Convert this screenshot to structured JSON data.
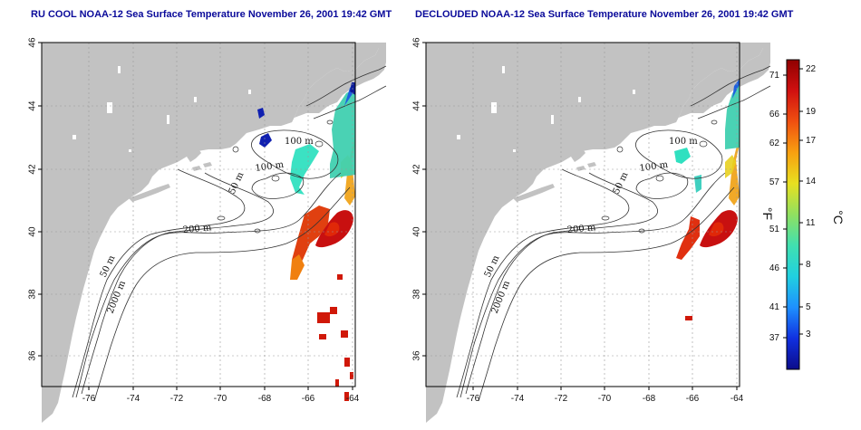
{
  "left_map": {
    "title": "RU COOL NOAA-12 Sea Surface Temperature November 26, 2001 19:42 GMT"
  },
  "right_map": {
    "title": "DECLOUDED NOAA-12 Sea Surface Temperature November 26, 2001 19:42 GMT"
  },
  "axes": {
    "lon_ticks": [
      "-76",
      "-74",
      "-72",
      "-70",
      "-68",
      "-66",
      "-64"
    ],
    "lat_ticks": [
      "36",
      "38",
      "40",
      "42",
      "44",
      "46"
    ]
  },
  "contour_labels": [
    "100 m",
    "100 m",
    "50 m",
    "200 m",
    "50 m",
    "2000 m"
  ],
  "colorbar": {
    "fahrenheit_label": "°F",
    "celsius_label": "°C",
    "fahrenheit_ticks": [
      "71",
      "66",
      "62",
      "57",
      "51",
      "46",
      "41",
      "37"
    ],
    "celsius_ticks": [
      "22",
      "19",
      "17",
      "14",
      "11",
      "8",
      "5",
      "3"
    ],
    "colors": [
      "#0c0c8a",
      "#1030e0",
      "#1e90ff",
      "#20d0e0",
      "#40e0b0",
      "#90e060",
      "#e8e020",
      "#f8a010",
      "#f05010",
      "#d01010",
      "#900000"
    ]
  },
  "colors": {
    "land": "#c2c2c2",
    "title": "#0a0a9a",
    "grid": "#9a9a9a"
  }
}
